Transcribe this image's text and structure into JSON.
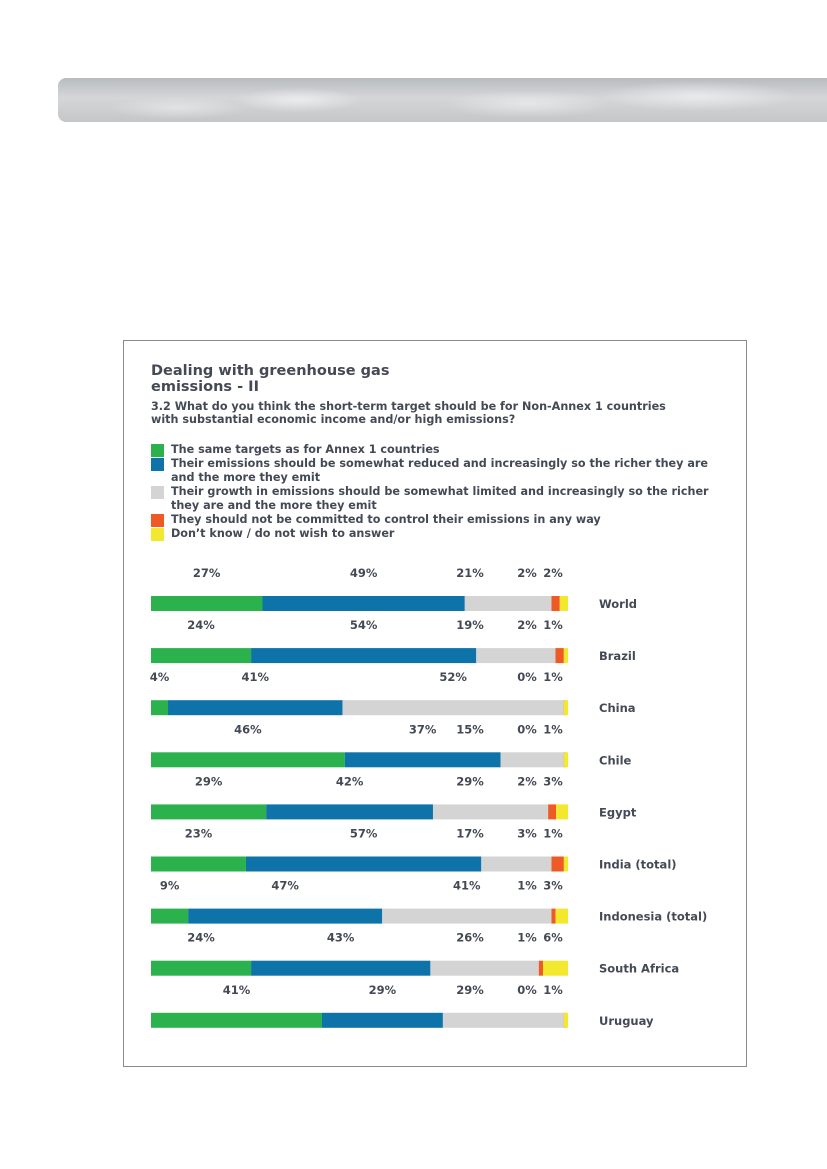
{
  "title_lines": [
    "Dealing with greenhouse gas",
    "emissions - II"
  ],
  "question": "3.2 What do you think the short-term target should be for Non-Annex 1 countries with substantial economic income and/or high emissions?",
  "chart_data": {
    "type": "bar",
    "orientation": "horizontal",
    "stacked": true,
    "title": "Dealing with greenhouse gas emissions - II",
    "legend_position": "top",
    "series": [
      {
        "name": "The same targets as for Annex 1 countries",
        "color": "#2bb24c"
      },
      {
        "name": "Their emissions should be somewhat reduced and increasingly so the richer they are and the more they emit",
        "color": "#0e73a8"
      },
      {
        "name": "Their growth in emissions should be somewhat limited and increasingly so the richer they are and the more they emit",
        "color": "#d4d4d4"
      },
      {
        "name": "They should not be committed to control their emissions in any way",
        "color": "#ee5a24"
      },
      {
        "name": "Don’t know / do not wish to answer",
        "color": "#f2e82e"
      }
    ],
    "categories": [
      "World",
      "Brazil",
      "China",
      "Chile",
      "Egypt",
      "India (total)",
      "Indonesia (total)",
      "South Africa",
      "Uruguay"
    ],
    "values": [
      [
        27,
        49,
        21,
        2,
        2
      ],
      [
        24,
        54,
        19,
        2,
        1
      ],
      [
        4,
        41,
        52,
        0,
        1
      ],
      [
        46,
        37,
        15,
        0,
        1
      ],
      [
        29,
        42,
        29,
        2,
        3
      ],
      [
        23,
        57,
        17,
        3,
        1
      ],
      [
        9,
        47,
        41,
        1,
        3
      ],
      [
        24,
        43,
        26,
        1,
        6
      ],
      [
        41,
        29,
        29,
        0,
        1
      ]
    ],
    "labels": [
      [
        "27%",
        "49%",
        "21%",
        "2%",
        "2%"
      ],
      [
        "24%",
        "54%",
        "19%",
        "2%",
        "1%"
      ],
      [
        "4%",
        "41%",
        "52%",
        "0%",
        "1%"
      ],
      [
        "46%",
        "37%",
        "15%",
        "0%",
        "1%"
      ],
      [
        "29%",
        "42%",
        "29%",
        "2%",
        "3%"
      ],
      [
        "23%",
        "57%",
        "17%",
        "3%",
        "1%"
      ],
      [
        "9%",
        "47%",
        "41%",
        "1%",
        "3%"
      ],
      [
        "24%",
        "43%",
        "26%",
        "1%",
        "6%"
      ],
      [
        "41%",
        "29%",
        "29%",
        "0%",
        "1%"
      ]
    ]
  }
}
